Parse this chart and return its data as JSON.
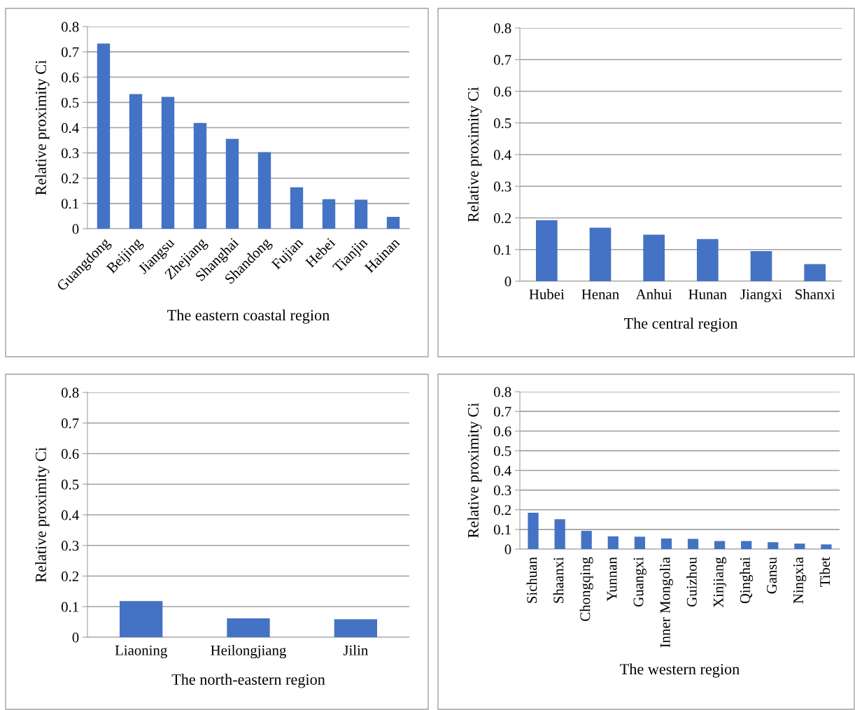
{
  "chart_data": [
    {
      "type": "bar",
      "xlabel": "The eastern coastal region",
      "ylabel": "Relative proximity Ci",
      "categories": [
        "Guangdong",
        "Beijing",
        "Jiangsu",
        "Zhejiang",
        "Shanghai",
        "Shandong",
        "Fujian",
        "Hebei",
        "Tianjin",
        "Hainan"
      ],
      "values": [
        0.733,
        0.533,
        0.522,
        0.419,
        0.356,
        0.303,
        0.164,
        0.117,
        0.115,
        0.047
      ],
      "color": "#4472c4",
      "ylim": [
        0,
        0.8
      ],
      "yticks": [
        0,
        0.1,
        0.2,
        0.3,
        0.4,
        0.5,
        0.6,
        0.7,
        0.8
      ],
      "grid": "y"
    },
    {
      "type": "bar",
      "xlabel": "The central region",
      "ylabel": "Relative proximity Ci",
      "categories": [
        "Hubei",
        "Henan",
        "Anhui",
        "Hunan",
        "Jiangxi",
        "Shanxi"
      ],
      "values": [
        0.193,
        0.169,
        0.147,
        0.133,
        0.095,
        0.054
      ],
      "color": "#4472c4",
      "ylim": [
        0,
        0.8
      ],
      "yticks": [
        0,
        0.1,
        0.2,
        0.3,
        0.4,
        0.5,
        0.6,
        0.7,
        0.8
      ],
      "grid": "y"
    },
    {
      "type": "bar",
      "xlabel": "The north-eastern region",
      "ylabel": "Relative proximity Ci",
      "categories": [
        "Liaoning",
        "Heilongjiang",
        "Jilin"
      ],
      "values": [
        0.118,
        0.062,
        0.059
      ],
      "color": "#4472c4",
      "ylim": [
        0,
        0.8
      ],
      "yticks": [
        0,
        0.1,
        0.2,
        0.3,
        0.4,
        0.5,
        0.6,
        0.7,
        0.8
      ],
      "grid": "y"
    },
    {
      "type": "bar",
      "xlabel": "The western region",
      "ylabel": "Relative proximity Ci",
      "categories": [
        "Sichuan",
        "Shaanxi",
        "Chongqing",
        "Yunnan",
        "Guangxi",
        "Inner Mongolia",
        "Guizhou",
        "Xinjiang",
        "Qinghai",
        "Gansu",
        "Ningxia",
        "Tibet"
      ],
      "values": [
        0.185,
        0.152,
        0.093,
        0.065,
        0.063,
        0.054,
        0.052,
        0.041,
        0.041,
        0.035,
        0.028,
        0.024
      ],
      "color": "#4472c4",
      "ylim": [
        0,
        0.8
      ],
      "yticks": [
        0,
        0.1,
        0.2,
        0.3,
        0.4,
        0.5,
        0.6,
        0.7,
        0.8
      ],
      "grid": "y"
    }
  ]
}
